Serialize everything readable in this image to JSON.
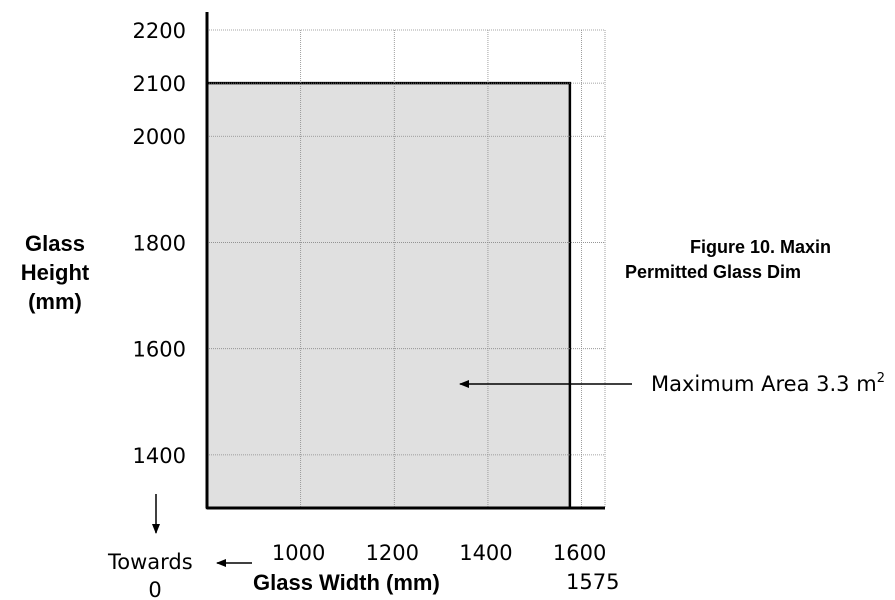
{
  "chart_data": {
    "type": "area",
    "title_lines": [
      "Figure 10. Maxin",
      "Permitted Glass Dim"
    ],
    "xlabel": "Glass Width (mm)",
    "ylabel_lines": [
      "Glass",
      "Height",
      "(mm)"
    ],
    "x_ticks": [
      "1000",
      "1200",
      "1400",
      "1600"
    ],
    "y_ticks": [
      "1400",
      "1600",
      "1800",
      "2000",
      "2100",
      "2200"
    ],
    "xlim": [
      800,
      1650
    ],
    "ylim": [
      1300,
      2200
    ],
    "grid": true,
    "region": {
      "max_width": 1575,
      "max_height": 2100,
      "label": "1575"
    },
    "annotation": {
      "text": "Maximum Area 3.3 m",
      "superscript": "2",
      "arrow_target": [
        1450,
        1500
      ]
    },
    "towards_zero": {
      "label": "Towards",
      "value": "0"
    },
    "fill_color": "#e0e0e0"
  }
}
